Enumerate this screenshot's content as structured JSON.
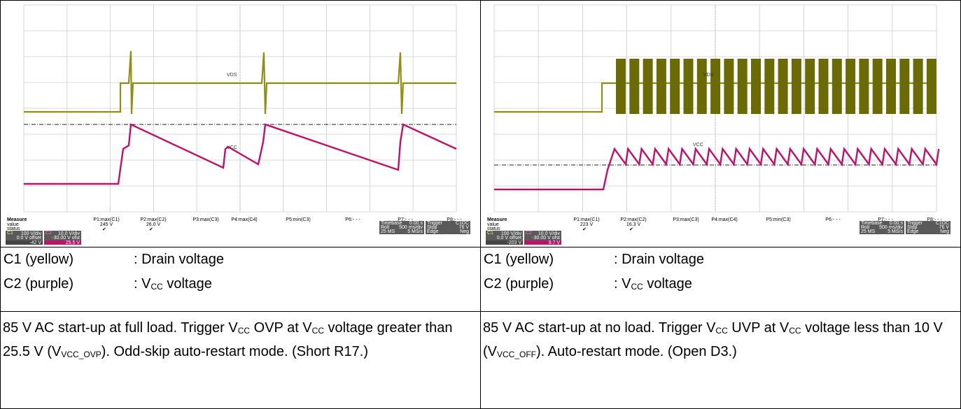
{
  "panels": [
    {
      "scope": {
        "trace_labels": [
          "VDS",
          "VCC"
        ],
        "measure": {
          "title": "Measure",
          "rows": [
            "value",
            "status"
          ]
        },
        "params": [
          {
            "name": "P1:max(C1)",
            "value": "245 V",
            "status": "✔"
          },
          {
            "name": "P2:max(C2)",
            "value": "26.0 V",
            "status": "✔"
          },
          {
            "name": "P3:max(C3)"
          },
          {
            "name": "P4:max(C4)"
          },
          {
            "name": "P5:min(C3)"
          },
          {
            "name": "P6:- - -"
          },
          {
            "name": "P7:- - -"
          },
          {
            "name": "P8:- - -"
          }
        ],
        "channels": [
          {
            "id": "C1",
            "scale": "100 V/div",
            "offset": "0.0 V offset",
            "reading": "-42 V"
          },
          {
            "id": "C2",
            "scale": "10.0 V/div",
            "offset": "-30.00 V ofst",
            "reading": "25.5 V"
          }
        ],
        "timebase": [
          "Timebase",
          "0.00 s",
          "Roll",
          "500 ms/div",
          "25 MS",
          "5 MS/s"
        ],
        "trigger": [
          "Trigger",
          "C1DC",
          "Stop",
          "76 V",
          "Edge",
          "Neg"
        ]
      },
      "legend": [
        {
          "name": "C1 (yellow)",
          "desc": [
            {
              "t": ": Drain voltage"
            }
          ]
        },
        {
          "name": "C2 (purple)",
          "desc": [
            {
              "t": ": V"
            },
            {
              "sub": "CC"
            },
            {
              "t": " voltage"
            }
          ]
        }
      ],
      "caption": [
        {
          "t": "85 V AC start-up at full load. Trigger V"
        },
        {
          "sub": "CC"
        },
        {
          "t": " OVP at V"
        },
        {
          "sub": "CC"
        },
        {
          "t": " voltage greater than 25.5 V (V"
        },
        {
          "sub": "VCC_OVP"
        },
        {
          "t": "). Odd-skip auto-restart mode. (Short R17.)"
        }
      ]
    },
    {
      "scope": {
        "trace_labels": [
          "VDS",
          "VCC"
        ],
        "measure": {
          "title": "Measure",
          "rows": [
            "value",
            "status"
          ]
        },
        "params": [
          {
            "name": "P1:max(C1)",
            "value": "223 V",
            "status": "✔"
          },
          {
            "name": "P2:max(C2)",
            "value": "16.3 V",
            "status": "✔"
          },
          {
            "name": "P3:max(C3)"
          },
          {
            "name": "P4:max(C4)"
          },
          {
            "name": "P5:min(C3)"
          },
          {
            "name": "P6:- - -"
          },
          {
            "name": "P7:- - -"
          },
          {
            "name": "P8:- - -"
          }
        ],
        "channels": [
          {
            "id": "C1",
            "scale": "100 V/div",
            "offset": "0.0 V offset",
            "reading": "-203 V"
          },
          {
            "id": "C2",
            "scale": "10.0 V/div",
            "offset": "-30.00 V ofst",
            "reading": "9.7 V"
          }
        ],
        "timebase": [
          "Timebase",
          "0.00 s",
          "Roll",
          "500 ms/div",
          "25 MS",
          "5 MS/s"
        ],
        "trigger": [
          "Trigger",
          "C1DC",
          "Stop",
          "76 V",
          "Edge",
          "Neg"
        ]
      },
      "legend": [
        {
          "name": "C1 (yellow)",
          "desc": [
            {
              "t": ": Drain voltage"
            }
          ]
        },
        {
          "name": "C2 (purple)",
          "desc": [
            {
              "t": ": V"
            },
            {
              "sub": "CC"
            },
            {
              "t": " voltage"
            }
          ]
        }
      ],
      "caption": [
        {
          "t": "85 V AC start-up at no load. Trigger V"
        },
        {
          "sub": "CC"
        },
        {
          "t": " UVP at V"
        },
        {
          "sub": "CC"
        },
        {
          "t": " voltage less than 10 V (V"
        },
        {
          "sub": "VCC_OFF"
        },
        {
          "t": "). Auto-restart mode. (Open D3.)"
        }
      ]
    }
  ]
}
